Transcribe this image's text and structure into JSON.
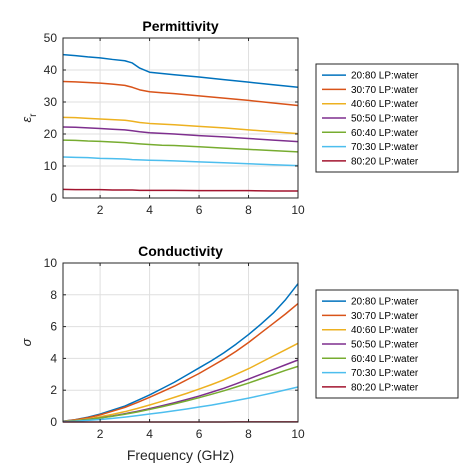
{
  "chart_data": [
    {
      "type": "line",
      "title": "Permittivity",
      "xlabel": "",
      "ylabel_main": "ε",
      "ylabel_sub": "r",
      "xlim": [
        0.5,
        10
      ],
      "ylim": [
        0,
        50
      ],
      "xticks": [
        2,
        4,
        6,
        8,
        10
      ],
      "yticks": [
        0,
        10,
        20,
        30,
        40,
        50
      ],
      "grid": true,
      "legend": "outside-right",
      "x": [
        0.5,
        1,
        1.5,
        2,
        2.5,
        3,
        3.3,
        3.6,
        4,
        4.5,
        5,
        6,
        7,
        8,
        9,
        10
      ],
      "series": [
        {
          "name": "20:80 LP:water",
          "color": "#0072bd",
          "values": [
            44.8,
            44.5,
            44.1,
            43.8,
            43.3,
            42.9,
            42.2,
            40.6,
            39.3,
            38.9,
            38.5,
            37.8,
            37.0,
            36.2,
            35.4,
            34.6
          ]
        },
        {
          "name": "30:70 LP:water",
          "color": "#d95319",
          "values": [
            36.4,
            36.3,
            36.1,
            35.9,
            35.6,
            35.2,
            34.6,
            33.8,
            33.2,
            32.9,
            32.6,
            31.9,
            31.2,
            30.5,
            29.7,
            28.9
          ]
        },
        {
          "name": "40:60 LP:water",
          "color": "#edb120",
          "values": [
            25.2,
            25.1,
            24.9,
            24.7,
            24.5,
            24.3,
            24.0,
            23.6,
            23.3,
            23.1,
            22.9,
            22.4,
            21.9,
            21.3,
            20.7,
            20.1
          ]
        },
        {
          "name": "50:50 LP:water",
          "color": "#7e2f8e",
          "values": [
            22.2,
            22.1,
            21.9,
            21.7,
            21.5,
            21.3,
            21.0,
            20.7,
            20.4,
            20.2,
            20.0,
            19.5,
            19.1,
            18.6,
            18.1,
            17.6
          ]
        },
        {
          "name": "60:40 LP:water",
          "color": "#77ac30",
          "values": [
            18.1,
            18.0,
            17.8,
            17.7,
            17.5,
            17.3,
            17.1,
            16.9,
            16.7,
            16.5,
            16.4,
            16.0,
            15.6,
            15.2,
            14.8,
            14.4
          ]
        },
        {
          "name": "70:30 LP:water",
          "color": "#4dbeee",
          "values": [
            12.8,
            12.7,
            12.6,
            12.4,
            12.3,
            12.2,
            12.0,
            11.9,
            11.8,
            11.7,
            11.6,
            11.3,
            11.0,
            10.7,
            10.4,
            10.1
          ]
        },
        {
          "name": "80:20 LP:water",
          "color": "#a2142f",
          "values": [
            2.7,
            2.6,
            2.6,
            2.6,
            2.5,
            2.5,
            2.5,
            2.4,
            2.4,
            2.4,
            2.4,
            2.3,
            2.3,
            2.3,
            2.2,
            2.2
          ]
        }
      ]
    },
    {
      "type": "line",
      "title": "Conductivity",
      "xlabel": "Frequency (GHz)",
      "ylabel_main": "σ",
      "ylabel_sub": "",
      "xlim": [
        0.5,
        10
      ],
      "ylim": [
        0,
        10
      ],
      "xticks": [
        2,
        4,
        6,
        8,
        10
      ],
      "yticks": [
        0,
        2,
        4,
        6,
        8,
        10
      ],
      "grid": true,
      "legend": "outside-right",
      "x": [
        0.5,
        1,
        1.5,
        2,
        2.5,
        3,
        3.5,
        4,
        4.5,
        5,
        5.5,
        6,
        6.5,
        7,
        7.5,
        8,
        8.5,
        9,
        9.5,
        10
      ],
      "series": [
        {
          "name": "20:80 LP:water",
          "color": "#0072bd",
          "values": [
            0.05,
            0.15,
            0.3,
            0.5,
            0.75,
            1.0,
            1.35,
            1.7,
            2.1,
            2.5,
            2.95,
            3.4,
            3.85,
            4.35,
            4.9,
            5.5,
            6.15,
            6.85,
            7.7,
            8.7
          ]
        },
        {
          "name": "30:70 LP:water",
          "color": "#d95319",
          "values": [
            0.05,
            0.14,
            0.27,
            0.45,
            0.68,
            0.92,
            1.22,
            1.55,
            1.9,
            2.25,
            2.65,
            3.05,
            3.5,
            3.95,
            4.45,
            5.0,
            5.6,
            6.2,
            6.8,
            7.45
          ]
        },
        {
          "name": "40:60 LP:water",
          "color": "#edb120",
          "values": [
            0.04,
            0.1,
            0.2,
            0.33,
            0.48,
            0.65,
            0.85,
            1.07,
            1.3,
            1.55,
            1.8,
            2.07,
            2.35,
            2.65,
            3.0,
            3.35,
            3.75,
            4.15,
            4.55,
            4.95
          ]
        },
        {
          "name": "50:50 LP:water",
          "color": "#7e2f8e",
          "values": [
            0.03,
            0.08,
            0.16,
            0.26,
            0.38,
            0.52,
            0.67,
            0.84,
            1.02,
            1.21,
            1.42,
            1.63,
            1.87,
            2.12,
            2.4,
            2.7,
            3.0,
            3.3,
            3.6,
            3.9
          ]
        },
        {
          "name": "60:40 LP:water",
          "color": "#77ac30",
          "values": [
            0.03,
            0.08,
            0.15,
            0.25,
            0.36,
            0.49,
            0.63,
            0.79,
            0.96,
            1.14,
            1.33,
            1.53,
            1.74,
            1.96,
            2.2,
            2.45,
            2.72,
            2.98,
            3.25,
            3.5
          ]
        },
        {
          "name": "70:30 LP:water",
          "color": "#4dbeee",
          "values": [
            0.02,
            0.05,
            0.1,
            0.16,
            0.23,
            0.31,
            0.4,
            0.5,
            0.6,
            0.71,
            0.82,
            0.94,
            1.06,
            1.2,
            1.35,
            1.5,
            1.67,
            1.84,
            2.02,
            2.2
          ]
        },
        {
          "name": "80:20 LP:water",
          "color": "#a2142f",
          "values": [
            0.0,
            0.0,
            0.0,
            0.0,
            0.0,
            0.0,
            0.0,
            0.0,
            0.0,
            0.0,
            0.0,
            0.0,
            0.0,
            0.0,
            0.01,
            0.01,
            0.01,
            0.01,
            0.01,
            0.01
          ]
        }
      ]
    }
  ]
}
